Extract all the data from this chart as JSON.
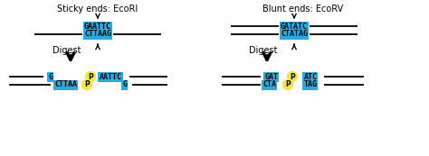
{
  "title_left": "Sticky ends: EcoRI",
  "title_right": "Blunt ends: EcoRV",
  "digest_label": "Digest",
  "cyan_color": "#29ABE2",
  "yellow_color": "#F5E642",
  "bg_color": "#FFFFFF",
  "top_seq_left_top": "GAATTC",
  "top_seq_left_bot": "CTTAAG",
  "top_seq_right_top": "GATATC",
  "top_seq_right_bot": "CTATAG",
  "bot_left_top_left": "G",
  "bot_left_top_right": "AATTC",
  "bot_left_bot_left": "CTTAA",
  "bot_left_bot_right": "G",
  "bot_right_top_left": "GAT",
  "bot_right_top_right": "ATC",
  "bot_right_bot_left": "CTA",
  "bot_right_bot_right": "TAG"
}
